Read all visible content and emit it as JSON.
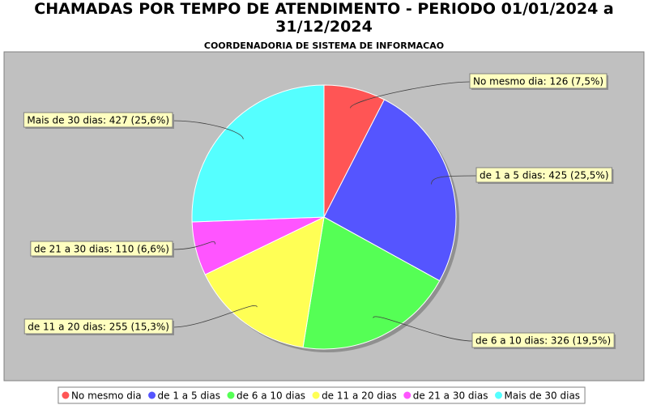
{
  "chart_data": {
    "type": "pie",
    "title": "CHAMADAS POR TEMPO DE ATENDIMENTO - PERIODO 01/01/2024 a 31/12/2024",
    "subtitle": "COORDENADORIA DE SISTEMA DE INFORMACAO",
    "categories": [
      "No mesmo dia",
      "de 1 a 5 dias",
      "de 6 a 10 dias",
      "de 11 a 20 dias",
      "de 21 a 30 dias",
      "Mais de 30 dias"
    ],
    "values": [
      126,
      425,
      326,
      255,
      110,
      427
    ],
    "value_labels": [
      "No mesmo dia: 126 (7,5%)",
      "de 1 a 5 dias: 425 (25,5%)",
      "de 6 a 10 dias: 326 (19,5%)",
      "de 11 a 20 dias: 255 (15,3%)",
      "de 21 a 30 dias: 110 (6,6%)",
      "Mais de 30 dias: 427 (25,6%)"
    ],
    "colors": [
      "#ff5555",
      "#5555ff",
      "#55ff55",
      "#ffff55",
      "#ff55ff",
      "#55ffff"
    ],
    "legend": "bottom"
  }
}
